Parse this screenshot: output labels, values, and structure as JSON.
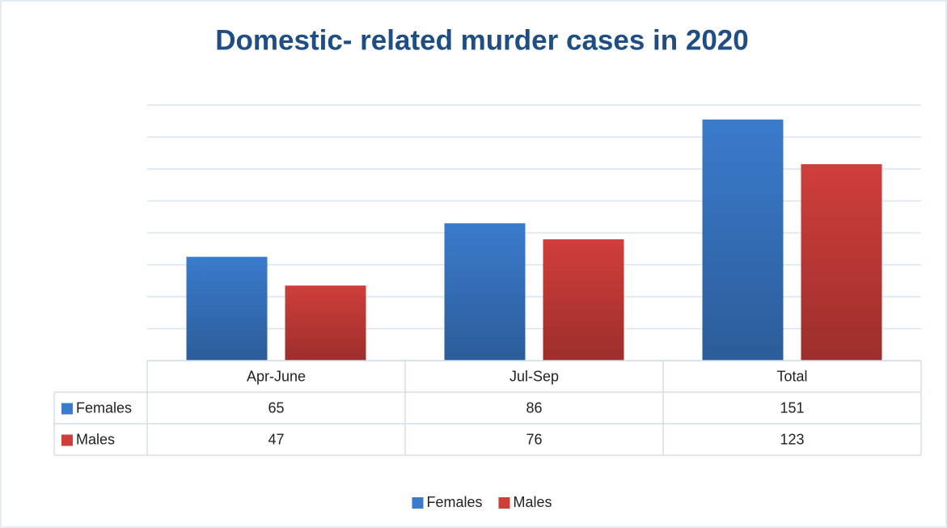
{
  "chart_data": {
    "type": "bar",
    "title": "Domestic- related murder cases in 2020",
    "categories": [
      "Apr-June",
      "Jul-Sep",
      "Total"
    ],
    "series": [
      {
        "name": "Females",
        "color": "#3a7bcc",
        "values": [
          65,
          86,
          151
        ]
      },
      {
        "name": "Males",
        "color": "#d03e3a",
        "values": [
          47,
          76,
          123
        ]
      }
    ],
    "ylim": [
      0,
      160
    ],
    "yticks": [
      0,
      20,
      40,
      60,
      80,
      100,
      120,
      140,
      160
    ],
    "grid": true,
    "data_table": true,
    "legend": "bottom"
  }
}
